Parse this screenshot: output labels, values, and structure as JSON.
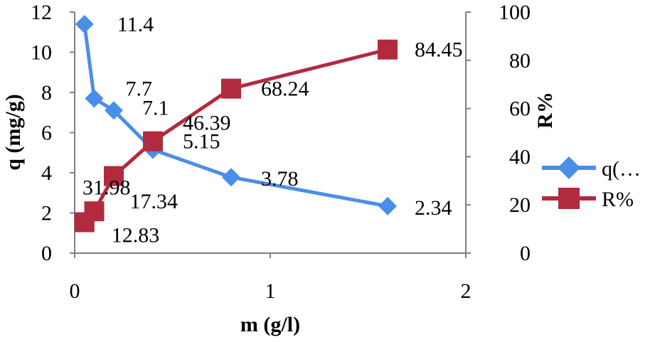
{
  "chart_data": {
    "type": "line",
    "x": [
      0.05,
      0.1,
      0.2,
      0.4,
      0.8,
      1.6
    ],
    "xlabel": "m (g/l)",
    "ylabel": "q (mg/g)",
    "y2label": "R%",
    "xlim": [
      0,
      2
    ],
    "ylim": [
      0,
      12
    ],
    "y2lim": [
      0,
      100
    ],
    "xticks": [
      "0",
      "1",
      "2"
    ],
    "yticks": [
      "0",
      "2",
      "4",
      "6",
      "8",
      "10",
      "12"
    ],
    "y2ticks": [
      "0",
      "20",
      "40",
      "60",
      "80",
      "100"
    ],
    "grid": false,
    "legend_position": "right",
    "series": [
      {
        "name": "q(…",
        "axis": "left",
        "marker": "diamond",
        "color": "#4A8FE7",
        "values": [
          11.4,
          7.7,
          7.1,
          5.15,
          3.78,
          2.34
        ],
        "labels": [
          "11.4",
          "7.7",
          "7.1",
          "5.15",
          "3.78",
          "2.34"
        ]
      },
      {
        "name": "R%",
        "axis": "right",
        "marker": "square",
        "color": "#B22A3E",
        "values": [
          12.83,
          17.34,
          31.98,
          46.39,
          68.24,
          84.45
        ],
        "labels": [
          "12.83",
          "17.34",
          "31.98",
          "46.39",
          "68.24",
          "84.45"
        ]
      }
    ]
  }
}
